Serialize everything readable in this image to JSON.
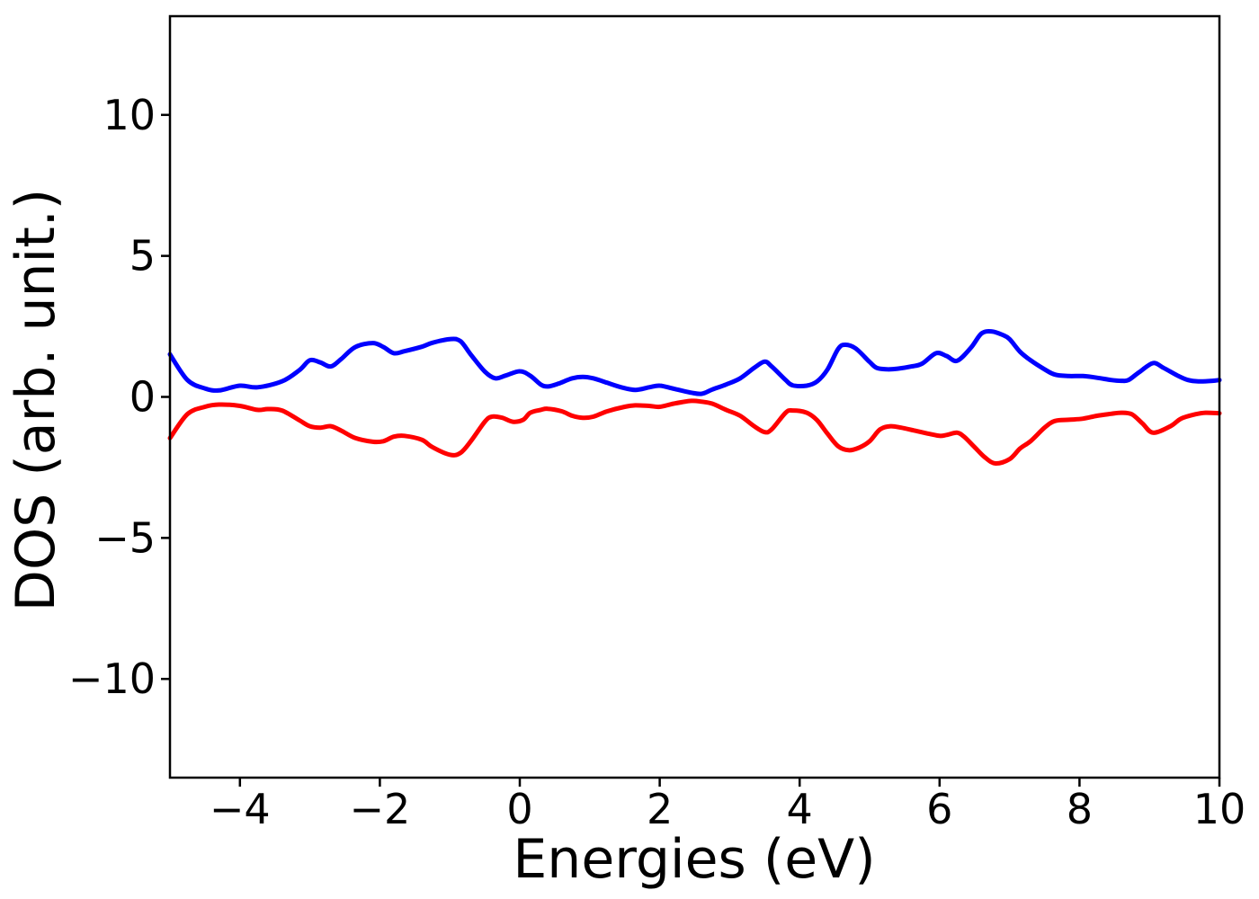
{
  "figure": {
    "background": "#ffffff",
    "frame_color": "#000000"
  },
  "chart_data": {
    "type": "line",
    "title": "",
    "xlabel": "Energies (eV)",
    "ylabel": "DOS (arb. unit.)",
    "xlim": [
      -5,
      10
    ],
    "ylim": [
      -13.5,
      13.5
    ],
    "xticks": [
      -4,
      -2,
      0,
      2,
      4,
      6,
      8,
      10
    ],
    "xtick_labels": [
      "−4",
      "−2",
      "0",
      "2",
      "4",
      "6",
      "8",
      "10"
    ],
    "yticks": [
      -10,
      -5,
      0,
      5,
      10
    ],
    "ytick_labels": [
      "−10",
      "−5",
      "0",
      "5",
      "10"
    ],
    "grid": false,
    "legend": null,
    "series": [
      {
        "name": "blue",
        "color": "#0000ff",
        "linewidth": 5,
        "x": [
          -5.0,
          -4.75,
          -4.5,
          -4.3,
          -4.0,
          -3.75,
          -3.4,
          -3.15,
          -3.0,
          -2.85,
          -2.7,
          -2.55,
          -2.35,
          -2.1,
          -1.95,
          -1.8,
          -1.65,
          -1.4,
          -1.25,
          -1.0,
          -0.85,
          -0.7,
          -0.5,
          -0.35,
          -0.2,
          0.0,
          0.15,
          0.3,
          0.4,
          0.55,
          0.75,
          0.9,
          1.05,
          1.25,
          1.45,
          1.65,
          1.85,
          2.0,
          2.2,
          2.45,
          2.6,
          2.75,
          2.95,
          3.15,
          3.35,
          3.5,
          3.6,
          3.8,
          3.9,
          4.1,
          4.25,
          4.4,
          4.55,
          4.65,
          4.8,
          5.0,
          5.1,
          5.25,
          5.4,
          5.6,
          5.75,
          5.95,
          6.1,
          6.25,
          6.45,
          6.6,
          6.75,
          6.9,
          7.0,
          7.15,
          7.3,
          7.5,
          7.65,
          7.85,
          8.05,
          8.25,
          8.45,
          8.6,
          8.7,
          8.85,
          9.05,
          9.2,
          9.4,
          9.55,
          9.7,
          9.9,
          10.0
        ],
        "y": [
          1.51,
          0.6,
          0.3,
          0.23,
          0.4,
          0.34,
          0.55,
          0.95,
          1.3,
          1.22,
          1.08,
          1.35,
          1.77,
          1.91,
          1.77,
          1.55,
          1.62,
          1.78,
          1.92,
          2.05,
          1.98,
          1.5,
          0.9,
          0.66,
          0.76,
          0.91,
          0.75,
          0.44,
          0.37,
          0.47,
          0.66,
          0.71,
          0.66,
          0.5,
          0.34,
          0.25,
          0.34,
          0.4,
          0.29,
          0.15,
          0.11,
          0.26,
          0.44,
          0.66,
          1.03,
          1.25,
          1.08,
          0.6,
          0.41,
          0.4,
          0.55,
          0.98,
          1.7,
          1.85,
          1.72,
          1.24,
          1.03,
          0.98,
          1.0,
          1.08,
          1.18,
          1.55,
          1.45,
          1.28,
          1.75,
          2.25,
          2.32,
          2.2,
          2.05,
          1.6,
          1.3,
          0.98,
          0.79,
          0.74,
          0.74,
          0.68,
          0.6,
          0.57,
          0.6,
          0.87,
          1.2,
          1.03,
          0.76,
          0.6,
          0.55,
          0.57,
          0.6
        ]
      },
      {
        "name": "red",
        "color": "#ff0000",
        "linewidth": 5,
        "x": [
          -5.0,
          -4.75,
          -4.5,
          -4.3,
          -4.0,
          -3.75,
          -3.6,
          -3.4,
          -3.15,
          -3.0,
          -2.85,
          -2.7,
          -2.55,
          -2.35,
          -2.1,
          -1.95,
          -1.8,
          -1.65,
          -1.4,
          -1.25,
          -1.0,
          -0.85,
          -0.7,
          -0.5,
          -0.4,
          -0.25,
          -0.1,
          0.05,
          0.15,
          0.3,
          0.4,
          0.6,
          0.75,
          0.9,
          1.05,
          1.25,
          1.5,
          1.65,
          1.85,
          2.0,
          2.2,
          2.45,
          2.6,
          2.75,
          2.95,
          3.15,
          3.35,
          3.5,
          3.6,
          3.8,
          3.9,
          4.1,
          4.25,
          4.4,
          4.55,
          4.7,
          4.85,
          5.0,
          5.15,
          5.3,
          5.45,
          5.65,
          5.85,
          6.0,
          6.1,
          6.25,
          6.35,
          6.5,
          6.65,
          6.8,
          7.0,
          7.15,
          7.3,
          7.5,
          7.65,
          7.85,
          8.05,
          8.25,
          8.45,
          8.6,
          8.75,
          8.9,
          9.05,
          9.3,
          9.45,
          9.65,
          9.8,
          10.0
        ],
        "y": [
          -1.46,
          -0.61,
          -0.35,
          -0.27,
          -0.32,
          -0.46,
          -0.43,
          -0.48,
          -0.83,
          -1.04,
          -1.09,
          -1.04,
          -1.2,
          -1.46,
          -1.59,
          -1.57,
          -1.41,
          -1.38,
          -1.52,
          -1.78,
          -2.05,
          -1.99,
          -1.57,
          -0.88,
          -0.7,
          -0.74,
          -0.88,
          -0.81,
          -0.56,
          -0.46,
          -0.42,
          -0.51,
          -0.67,
          -0.74,
          -0.7,
          -0.51,
          -0.35,
          -0.3,
          -0.32,
          -0.35,
          -0.24,
          -0.14,
          -0.17,
          -0.24,
          -0.46,
          -0.67,
          -1.04,
          -1.25,
          -1.15,
          -0.56,
          -0.48,
          -0.56,
          -0.83,
          -1.31,
          -1.75,
          -1.89,
          -1.8,
          -1.57,
          -1.15,
          -1.04,
          -1.09,
          -1.2,
          -1.31,
          -1.38,
          -1.35,
          -1.27,
          -1.41,
          -1.78,
          -2.15,
          -2.36,
          -2.21,
          -1.83,
          -1.57,
          -1.09,
          -0.85,
          -0.81,
          -0.77,
          -0.67,
          -0.6,
          -0.56,
          -0.62,
          -0.94,
          -1.27,
          -1.04,
          -0.77,
          -0.62,
          -0.56,
          -0.58
        ]
      }
    ]
  }
}
